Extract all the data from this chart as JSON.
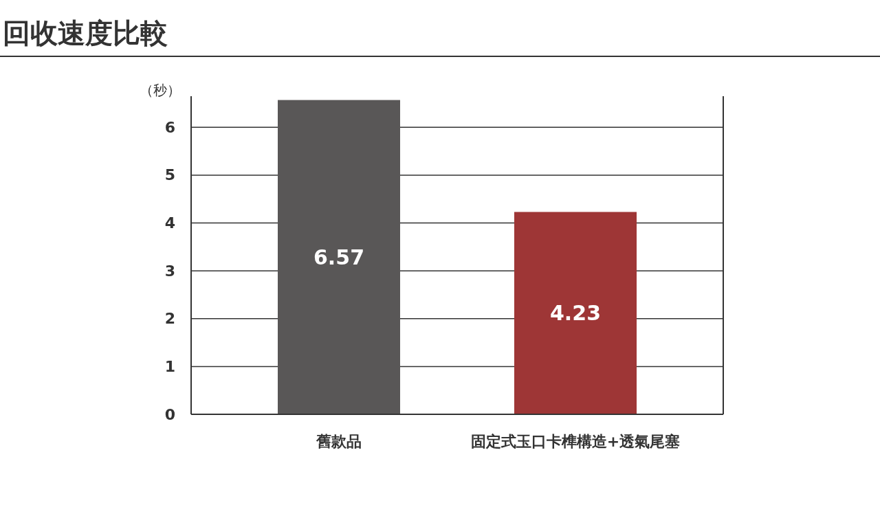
{
  "chart_data": {
    "type": "bar",
    "title": "回收速度比較",
    "ylabel": "（秒）",
    "categories": [
      "舊款品",
      "固定式玉口卡榫構造+透氣尾塞"
    ],
    "values": [
      6.57,
      4.23
    ],
    "colors": [
      "#595757",
      "#9e3636"
    ],
    "ylim": [
      0,
      6.65
    ],
    "yticks": [
      0,
      1,
      2,
      3,
      4,
      5,
      6
    ],
    "grid": "y",
    "data_labels": true
  }
}
